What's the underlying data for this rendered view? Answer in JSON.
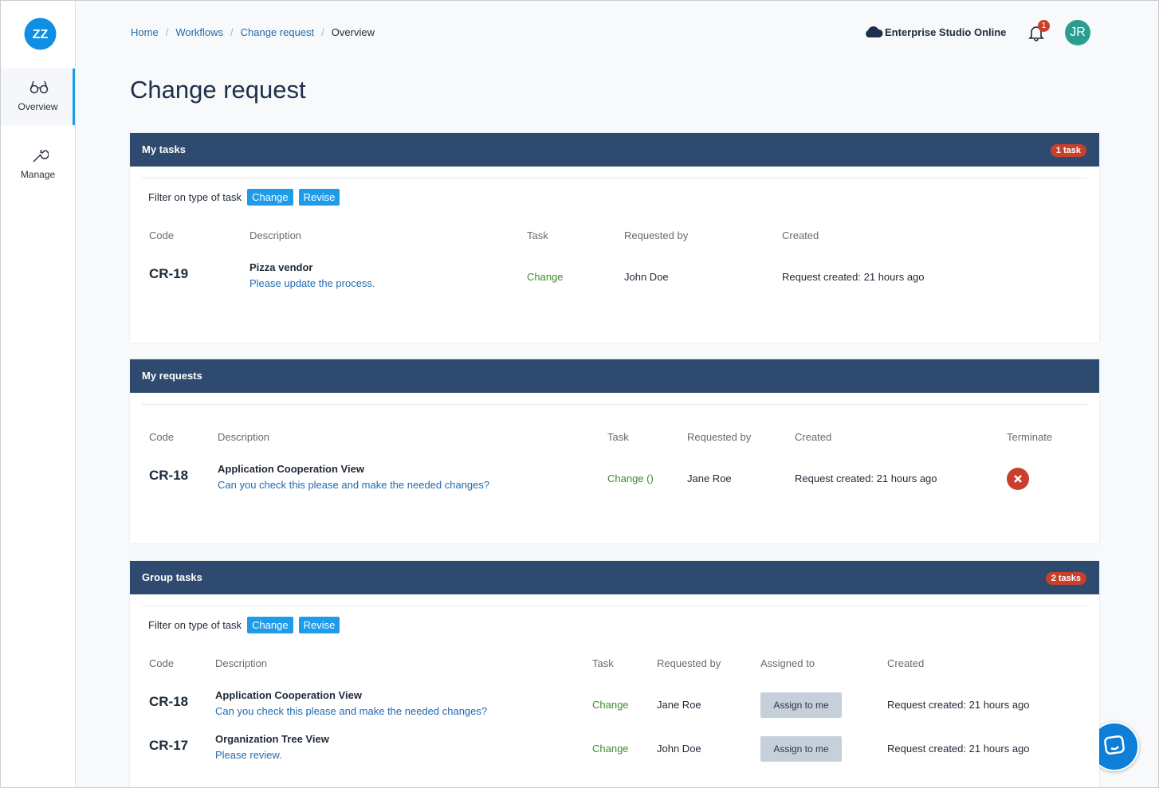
{
  "sidebar": {
    "nav": [
      {
        "label": "Overview"
      },
      {
        "label": "Manage"
      }
    ]
  },
  "header": {
    "breadcrumb": [
      "Home",
      "Workflows",
      "Change request",
      "Overview"
    ],
    "workspace": "Enterprise Studio Online",
    "notification_count": 1,
    "avatar": "JR"
  },
  "page_title": "Change request",
  "sections": [
    {
      "title": "My tasks",
      "badge": "1 task",
      "filter": {
        "label": "Filter on type of task",
        "options": [
          "Change",
          "Revise"
        ]
      },
      "columns": [
        "Code",
        "Description",
        "Task",
        "Requested by",
        "Created"
      ],
      "rows": [
        {
          "code": "CR-19",
          "title": "Pizza vendor",
          "description": "Please update the process.",
          "task": "Change",
          "requested_by": "John Doe",
          "created": "Request created: 21 hours ago"
        }
      ]
    },
    {
      "title": "My requests",
      "columns": [
        "Code",
        "Description",
        "Task",
        "Requested by",
        "Created",
        "Terminate"
      ],
      "rows": [
        {
          "code": "CR-18",
          "title": "Application Cooperation View",
          "description": "Can you check this please and make the needed changes?",
          "task": "Change ()",
          "requested_by": "Jane Roe",
          "created": "Request created: 21 hours ago"
        }
      ]
    },
    {
      "title": "Group tasks",
      "badge": "2 tasks",
      "filter": {
        "label": "Filter on type of task",
        "options": [
          "Change",
          "Revise"
        ]
      },
      "columns": [
        "Code",
        "Description",
        "Task",
        "Requested by",
        "Assigned to",
        "Created"
      ],
      "rows": [
        {
          "code": "CR-18",
          "title": "Application Cooperation View",
          "description": "Can you check this please and make the needed changes?",
          "task": "Change",
          "requested_by": "Jane Roe",
          "assign": "Assign to me",
          "created": "Request created: 21 hours ago"
        },
        {
          "code": "CR-17",
          "title": "Organization Tree View",
          "description": "Please review.",
          "task": "Change",
          "requested_by": "John Doe",
          "assign": "Assign to me",
          "created": "Request created: 21 hours ago"
        }
      ]
    }
  ]
}
